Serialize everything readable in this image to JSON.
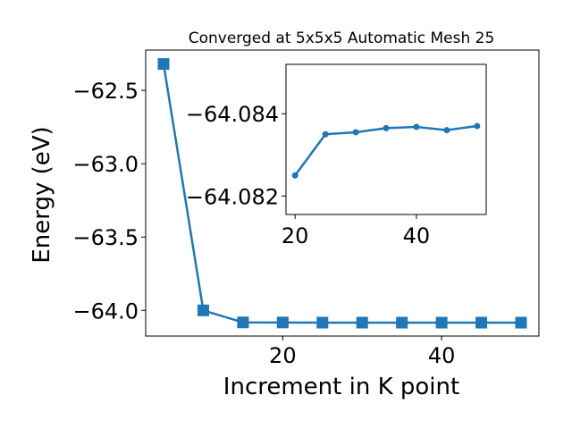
{
  "colors": {
    "series": "#1f77b4",
    "axes": "#000000",
    "background": "#ffffff"
  },
  "chart_data": [
    {
      "id": "main",
      "type": "line",
      "title": "Converged at 5x5x5 Automatic Mesh 25",
      "xlabel": "Increment in K point",
      "ylabel": "Energy (eV)",
      "xlim": [
        2.75,
        52.25
      ],
      "ylim": [
        -64.175,
        -62.225
      ],
      "xticks": [
        20,
        40
      ],
      "yticks": [
        -62.5,
        -63.0,
        -63.5,
        -64.0
      ],
      "xtick_labels": [
        "20",
        "40"
      ],
      "ytick_labels": [
        "−62.5",
        "−63.0",
        "−63.5",
        "−64.0"
      ],
      "marker": "square",
      "grid": false,
      "series": [
        {
          "x": [
            5,
            10,
            15,
            20,
            25,
            30,
            35,
            40,
            45,
            50
          ],
          "y": [
            -62.32,
            -64.0,
            -64.082,
            -64.0825,
            -64.0835,
            -64.0835,
            -64.0836,
            -64.0836,
            -64.0836,
            -64.0836
          ]
        }
      ]
    },
    {
      "id": "inset",
      "type": "line",
      "xlim": [
        18.5,
        51.5
      ],
      "ylim": [
        -64.08155,
        -64.0852
      ],
      "xticks": [
        20,
        40
      ],
      "yticks": [
        -64.084,
        -64.082
      ],
      "xtick_labels": [
        "20",
        "40"
      ],
      "ytick_labels": [
        "−64.084",
        "−64.082"
      ],
      "marker": "circle",
      "grid": false,
      "series": [
        {
          "x": [
            20,
            25,
            30,
            35,
            40,
            45,
            50
          ],
          "y": [
            -64.0825,
            -64.0835,
            -64.08355,
            -64.08365,
            -64.08368,
            -64.0836,
            -64.0837
          ]
        }
      ]
    }
  ]
}
